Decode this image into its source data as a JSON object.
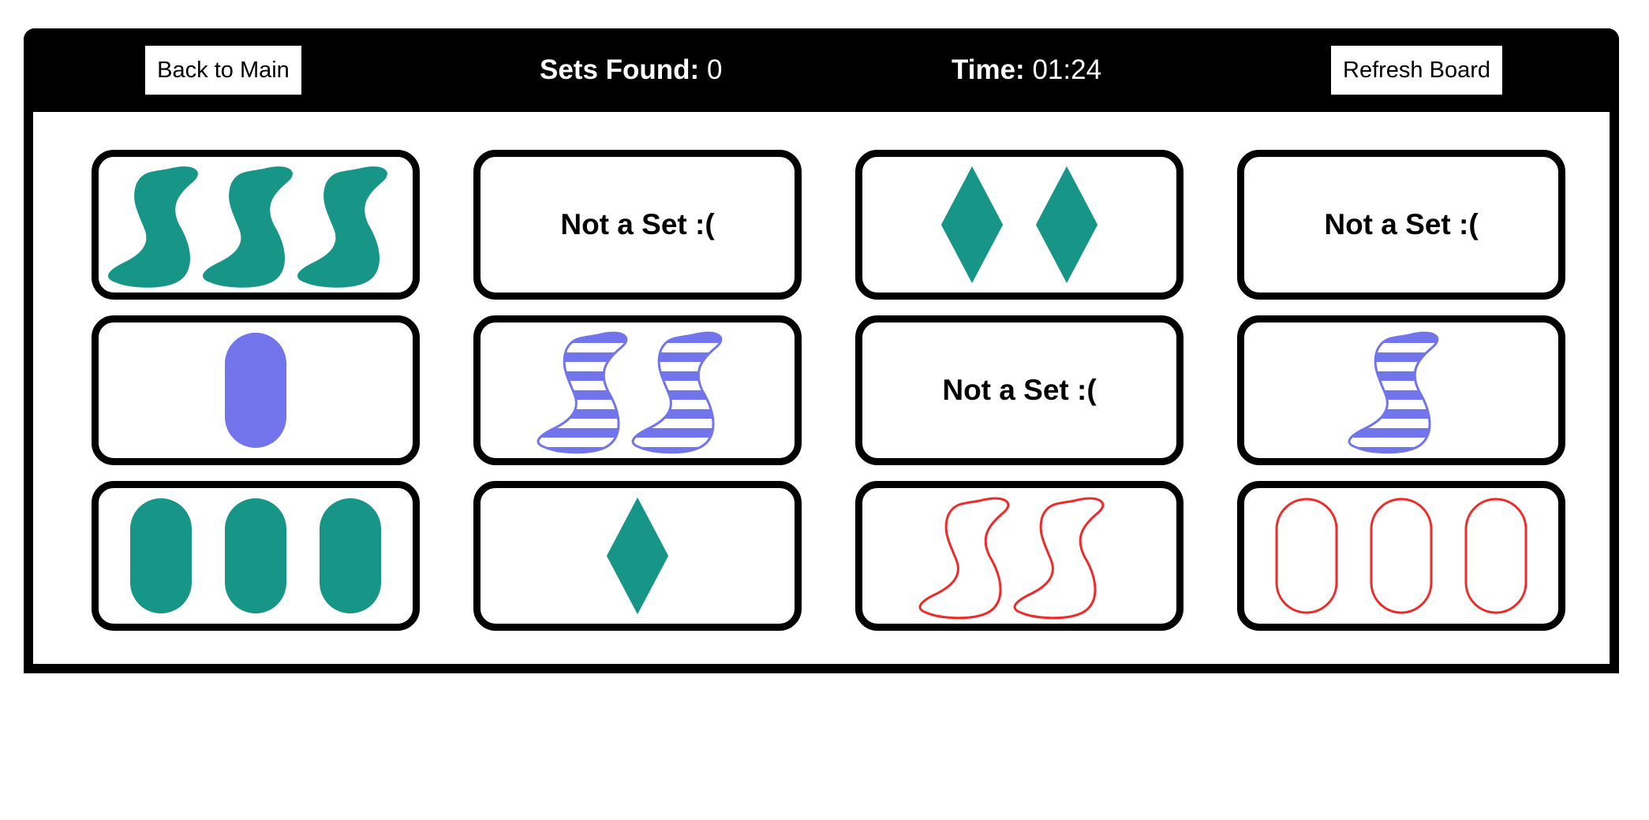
{
  "header": {
    "back_label": "Back to Main",
    "sets_label": "Sets Found:",
    "sets_value": "0",
    "time_label": "Time:",
    "time_value": "01:24",
    "refresh_label": "Refresh Board"
  },
  "colors": {
    "teal": "#179688",
    "purple": "#7174ea",
    "red": "#ee2b2b"
  },
  "cards": [
    {
      "type": "shape",
      "shape": "squiggle",
      "color": "teal",
      "fill": "solid",
      "count": 3
    },
    {
      "type": "message",
      "text": "Not a Set :("
    },
    {
      "type": "shape",
      "shape": "diamond",
      "color": "teal",
      "fill": "solid",
      "count": 2
    },
    {
      "type": "message",
      "text": "Not a Set :("
    },
    {
      "type": "shape",
      "shape": "oval",
      "color": "purple",
      "fill": "solid",
      "count": 1
    },
    {
      "type": "shape",
      "shape": "squiggle",
      "color": "purple",
      "fill": "striped",
      "count": 2
    },
    {
      "type": "message",
      "text": "Not a Set :("
    },
    {
      "type": "shape",
      "shape": "squiggle",
      "color": "purple",
      "fill": "striped",
      "count": 1
    },
    {
      "type": "shape",
      "shape": "oval",
      "color": "teal",
      "fill": "solid",
      "count": 3
    },
    {
      "type": "shape",
      "shape": "diamond",
      "color": "teal",
      "fill": "solid",
      "count": 1
    },
    {
      "type": "shape",
      "shape": "squiggle",
      "color": "red",
      "fill": "outline",
      "count": 2
    },
    {
      "type": "shape",
      "shape": "oval",
      "color": "red",
      "fill": "outline",
      "count": 3
    }
  ]
}
